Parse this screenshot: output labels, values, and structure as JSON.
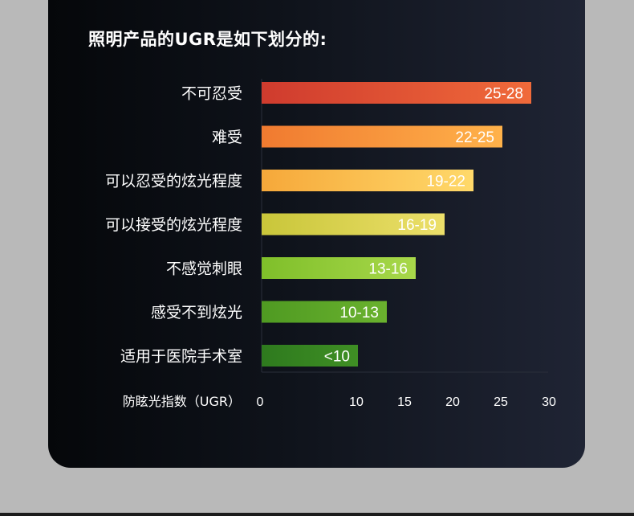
{
  "heading": "照明产品的UGR是如下划分的:",
  "chart_data": {
    "type": "bar",
    "orientation": "horizontal",
    "xlabel": "防眩光指数（UGR）",
    "xlim": [
      0,
      30
    ],
    "xticks": [
      "0",
      "10",
      "15",
      "20",
      "25",
      "30"
    ],
    "categories": [
      "不可忍受",
      "难受",
      "可以忍受的炫光程度",
      "可以接受的炫光程度",
      "不感觉刺眼",
      "感受不到炫光",
      "适用于医院手术室"
    ],
    "ranges": [
      "25-28",
      "22-25",
      "19-22",
      "16-19",
      "13-16",
      "10-13",
      "<10"
    ],
    "values": [
      28,
      25,
      22,
      19,
      16,
      13,
      10
    ],
    "colors": [
      [
        "#cf3b2e",
        "#f06a3a"
      ],
      [
        "#f07a30",
        "#ffb24a"
      ],
      [
        "#f6a83a",
        "#ffd96a"
      ],
      [
        "#c9c63a",
        "#ecdf6a"
      ],
      [
        "#7fbf2a",
        "#a8d84a"
      ],
      [
        "#4f9a22",
        "#6ab22e"
      ],
      [
        "#2e7a1e",
        "#3f8f24"
      ]
    ]
  }
}
